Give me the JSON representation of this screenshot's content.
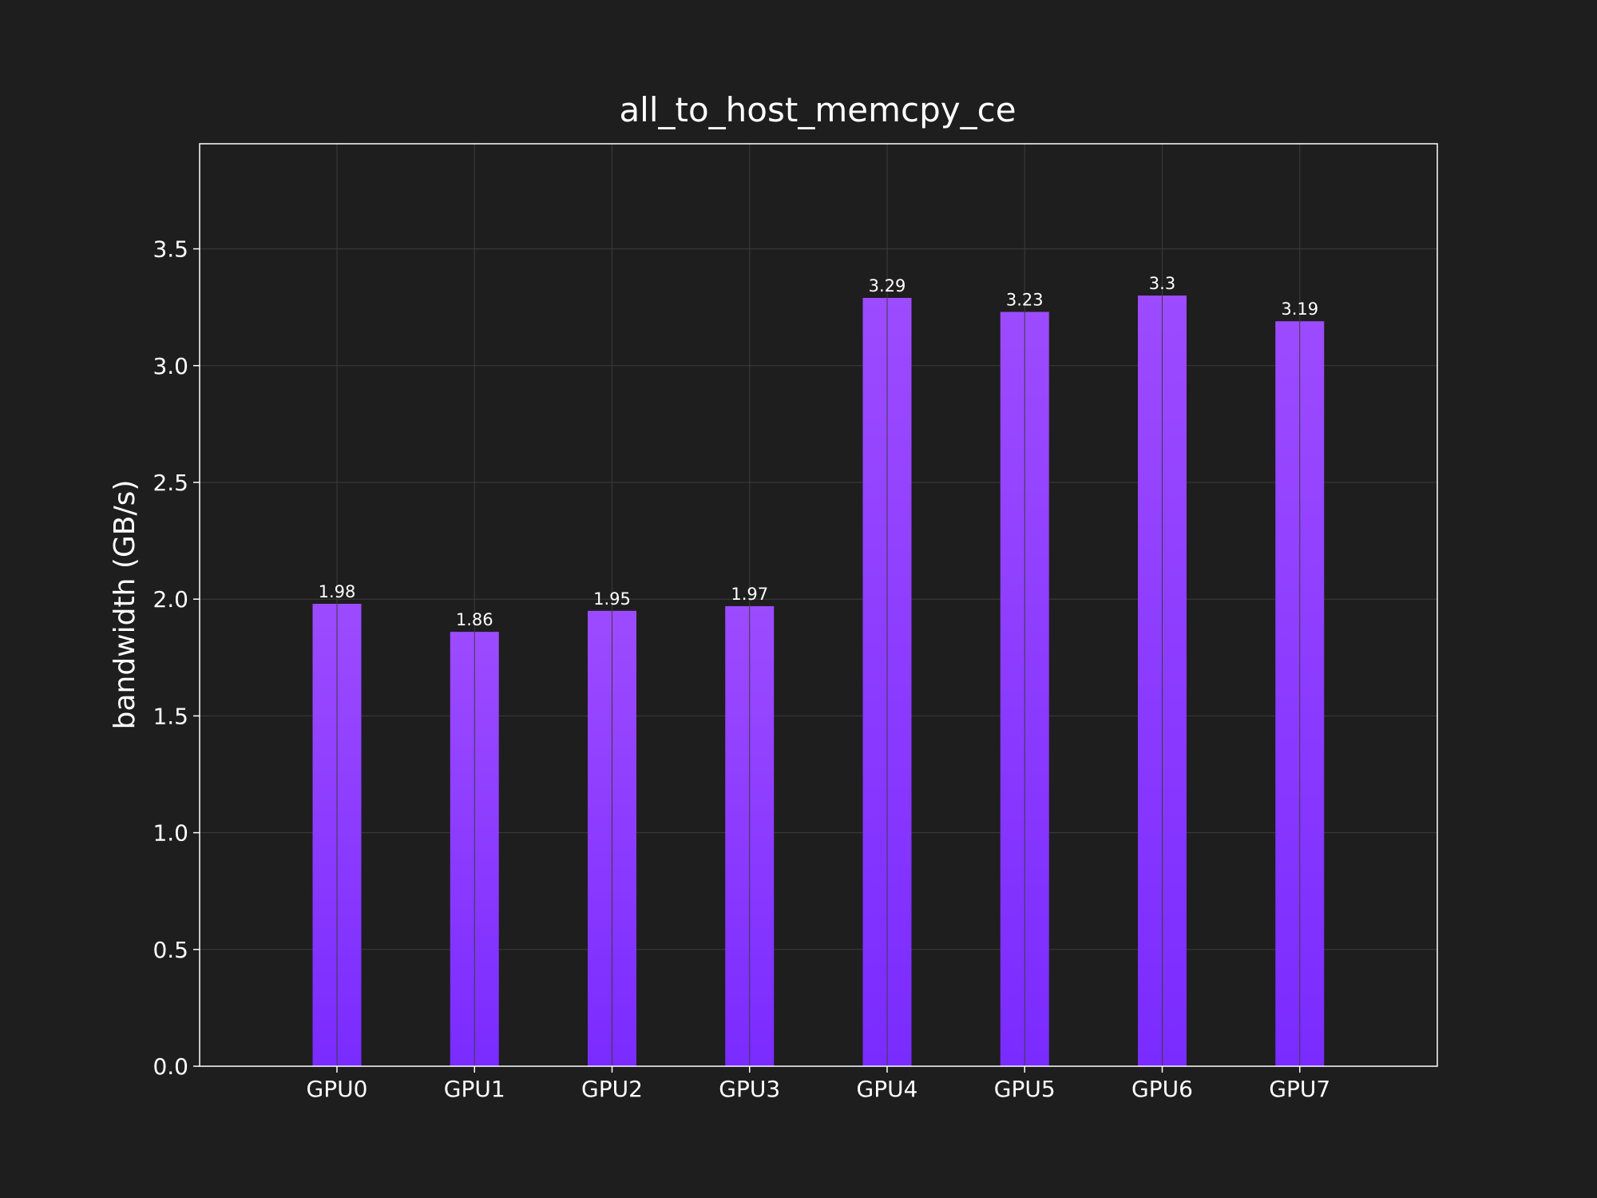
{
  "chart_data": {
    "type": "bar",
    "title": "all_to_host_memcpy_ce",
    "xlabel": "",
    "ylabel": "bandwidth (GB/s)",
    "categories": [
      "GPU0",
      "GPU1",
      "GPU2",
      "GPU3",
      "GPU4",
      "GPU5",
      "GPU6",
      "GPU7"
    ],
    "values": [
      1.98,
      1.86,
      1.95,
      1.97,
      3.29,
      3.23,
      3.3,
      3.19
    ],
    "data_labels": [
      "1.98",
      "1.86",
      "1.95",
      "1.97",
      "3.29",
      "3.23",
      "3.3",
      "3.19"
    ],
    "ylim": [
      0,
      3.95
    ],
    "yticks": [
      0.0,
      0.5,
      1.0,
      1.5,
      2.0,
      2.5,
      3.0,
      3.5
    ],
    "ytick_labels": [
      "0.0",
      "0.5",
      "1.0",
      "1.5",
      "2.0",
      "2.5",
      "3.0",
      "3.5"
    ],
    "grid": true,
    "legend": "none",
    "colors": {
      "background": "#1e1e1e",
      "bar_top": "#9d4bff",
      "bar_bottom": "#7a2bff",
      "text": "#ffffff",
      "grid": "#3c3c3c",
      "frame": "#ffffff"
    }
  }
}
